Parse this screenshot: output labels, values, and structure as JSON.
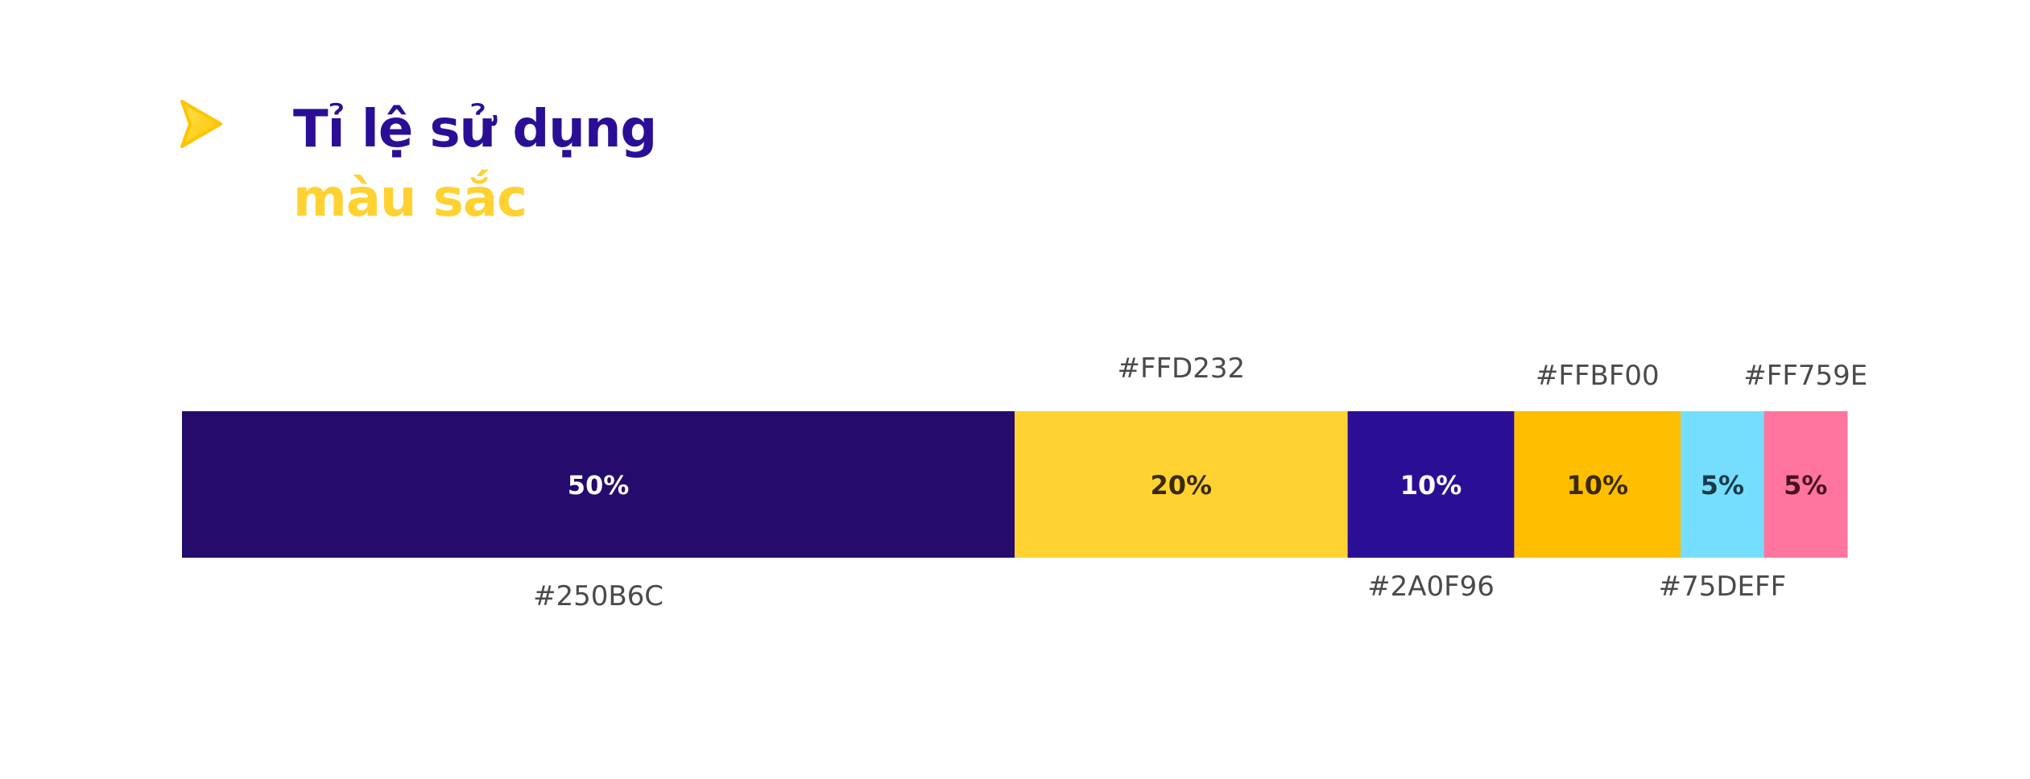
{
  "header": {
    "title_line1": "Tỉ lệ sử dụng",
    "title_line2": "màu sắc",
    "logo_icon": "arrow-pointer-icon",
    "logo_color": "#FFD232"
  },
  "chart_data": {
    "type": "bar",
    "orientation": "horizontal-stacked",
    "title": "Tỉ lệ sử dụng màu sắc",
    "total": 100,
    "unit": "%",
    "segments": [
      {
        "value": 50,
        "label": "50%",
        "color": "#250B6C",
        "hex_label": "#250B6C",
        "hex_position": "below",
        "text_color": "#FFFFFF"
      },
      {
        "value": 20,
        "label": "20%",
        "color": "#FFD232",
        "hex_label": "#FFD232",
        "hex_position": "above",
        "text_color": "#3B2A00"
      },
      {
        "value": 10,
        "label": "10%",
        "color": "#2A0F96",
        "hex_label": "#2A0F96",
        "hex_position": "below",
        "text_color": "#FFFFFF"
      },
      {
        "value": 10,
        "label": "10%",
        "color": "#FFBF00",
        "hex_label": "#FFBF00",
        "hex_position": "above",
        "text_color": "#3B2A00"
      },
      {
        "value": 5,
        "label": "5%",
        "color": "#75DEFF",
        "hex_label": "#75DEFF",
        "hex_position": "below",
        "text_color": "#1A3A48"
      },
      {
        "value": 5,
        "label": "5%",
        "color": "#FF759E",
        "hex_label": "#FF759E",
        "hex_position": "above",
        "text_color": "#4A1020"
      }
    ]
  }
}
